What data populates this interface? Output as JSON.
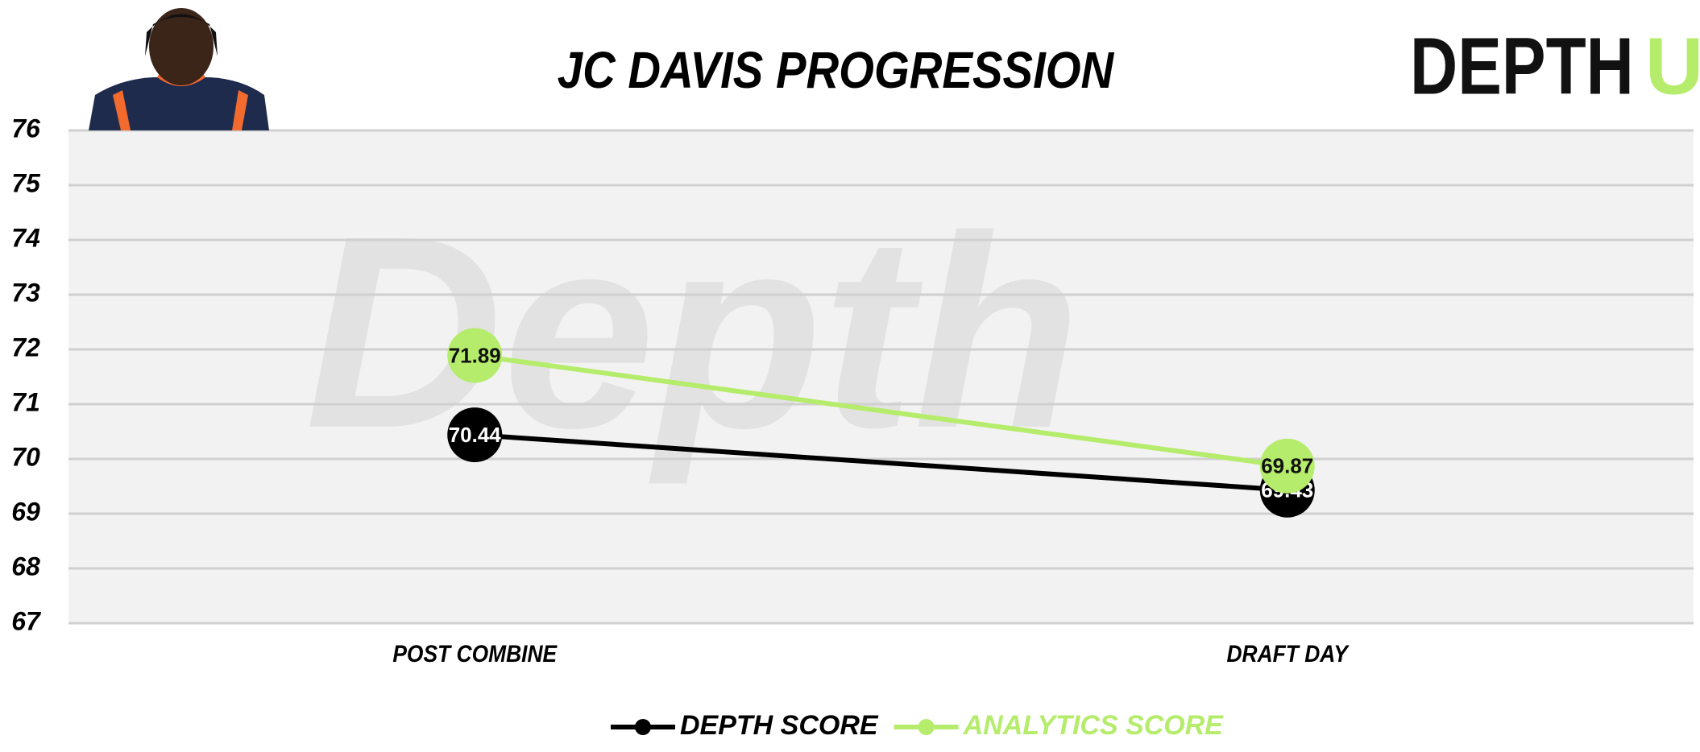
{
  "chart_data": {
    "type": "line",
    "title": "JC DAVIS PROGRESSION",
    "logo": {
      "text": "DEPTH",
      "accent": "U"
    },
    "watermark": "Depth",
    "categories": [
      "POST COMBINE",
      "DRAFT DAY"
    ],
    "series": [
      {
        "name": "DEPTH SCORE",
        "color": "#000000",
        "values": [
          70.44,
          69.43
        ]
      },
      {
        "name": "ANALYTICS SCORE",
        "color": "#b5ec6c",
        "values": [
          71.89,
          69.87
        ]
      }
    ],
    "ylim": [
      67,
      76
    ],
    "yticks": [
      67,
      68,
      69,
      70,
      71,
      72,
      73,
      74,
      75,
      76
    ],
    "grid": true,
    "legend": "bottom"
  }
}
